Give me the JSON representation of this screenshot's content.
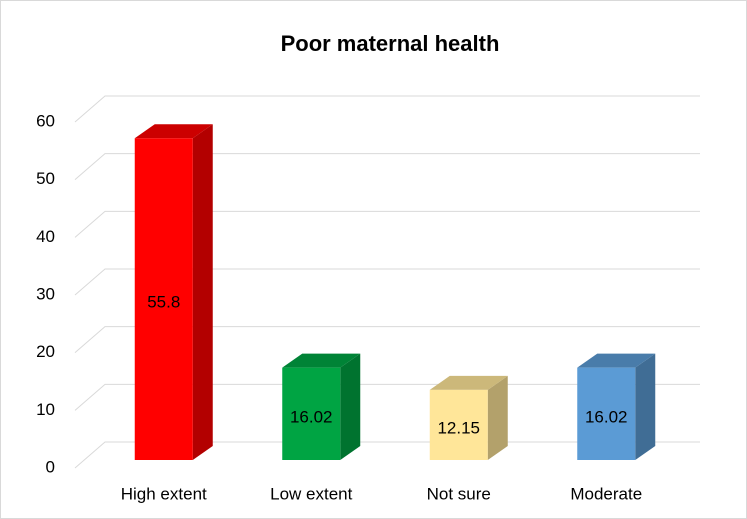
{
  "chart_data": {
    "type": "bar3d",
    "title": "Poor maternal health",
    "categories": [
      "High extent",
      "Low extent",
      "Not sure",
      "Moderate"
    ],
    "values": [
      55.8,
      16.02,
      12.15,
      16.02
    ],
    "colors": [
      "#ff0000",
      "#00a443",
      "#ffe699",
      "#5b9bd5"
    ],
    "ylim": [
      0,
      60
    ],
    "yticks": [
      0,
      10,
      20,
      30,
      40,
      50,
      60
    ],
    "grid": true
  }
}
